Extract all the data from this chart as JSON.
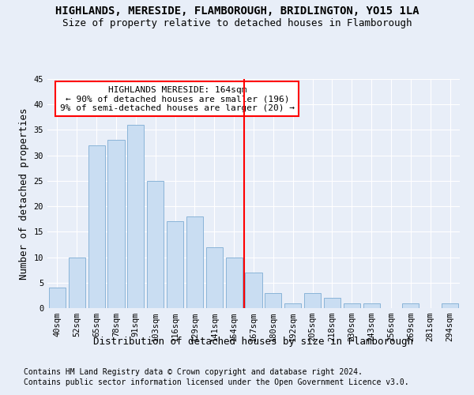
{
  "title": "HIGHLANDS, MERESIDE, FLAMBOROUGH, BRIDLINGTON, YO15 1LA",
  "subtitle": "Size of property relative to detached houses in Flamborough",
  "xlabel": "Distribution of detached houses by size in Flamborough",
  "ylabel": "Number of detached properties",
  "footnote1": "Contains HM Land Registry data © Crown copyright and database right 2024.",
  "footnote2": "Contains public sector information licensed under the Open Government Licence v3.0.",
  "categories": [
    "40sqm",
    "52sqm",
    "65sqm",
    "78sqm",
    "91sqm",
    "103sqm",
    "116sqm",
    "129sqm",
    "141sqm",
    "154sqm",
    "167sqm",
    "180sqm",
    "192sqm",
    "205sqm",
    "218sqm",
    "230sqm",
    "243sqm",
    "256sqm",
    "269sqm",
    "281sqm",
    "294sqm"
  ],
  "values": [
    4,
    10,
    32,
    33,
    36,
    25,
    17,
    18,
    12,
    10,
    7,
    3,
    1,
    3,
    2,
    1,
    1,
    0,
    1,
    0,
    1
  ],
  "bar_color": "#c9ddf2",
  "bar_edge_color": "#8ab4d8",
  "reference_line_index": 10,
  "reference_line_label": "HIGHLANDS MERESIDE: 164sqm",
  "reference_line_color": "red",
  "annotation_line1": "← 90% of detached houses are smaller (196)",
  "annotation_line2": "9% of semi-detached houses are larger (20) →",
  "ylim": [
    0,
    45
  ],
  "yticks": [
    0,
    5,
    10,
    15,
    20,
    25,
    30,
    35,
    40,
    45
  ],
  "background_color": "#e8eef8",
  "grid_color": "#ffffff",
  "title_fontsize": 10,
  "subtitle_fontsize": 9,
  "axis_label_fontsize": 9,
  "tick_fontsize": 7.5,
  "annotation_fontsize": 8,
  "footnote_fontsize": 7
}
